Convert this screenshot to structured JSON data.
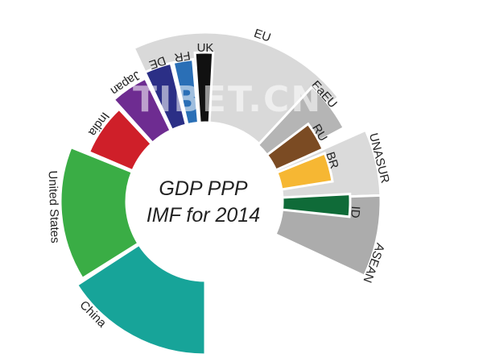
{
  "chart_data": {
    "type": "pie",
    "style": "radial (fan) donut with regional bloc groupings",
    "title_line1": "GDP PPP",
    "title_line2": "IMF for 2014",
    "slices": [
      {
        "name": "China",
        "value": 17.6,
        "color": "#17a499"
      },
      {
        "name": "United States",
        "value": 17.4,
        "color": "#3aad45"
      },
      {
        "name": "India",
        "value": 7.4,
        "color": "#cf1f29"
      },
      {
        "name": "Japan",
        "value": 4.8,
        "color": "#6e2c91"
      },
      {
        "name": "DE",
        "value": 3.7,
        "color": "#2b2f86"
      },
      {
        "name": "FR",
        "value": 2.6,
        "color": "#2a6fb6"
      },
      {
        "name": "UK",
        "value": 2.5,
        "color": "#111111"
      },
      {
        "name": "EU",
        "value": 18.5,
        "color": "#d9d9d9"
      },
      {
        "name": "RU",
        "value": 3.6,
        "color": "#7b4b23"
      },
      {
        "name": "EaEU",
        "value": 4.5,
        "color": "#b5b5b5"
      },
      {
        "name": "BR",
        "value": 3.0,
        "color": "#f6b733"
      },
      {
        "name": "UNASUR",
        "value": 5.5,
        "color": "#dadada"
      },
      {
        "name": "ID",
        "value": 2.6,
        "color": "#0f6b38"
      },
      {
        "name": "ASEAN",
        "value": 6.9,
        "color": "#acacac"
      }
    ],
    "watermark": "TIBET.CN"
  }
}
